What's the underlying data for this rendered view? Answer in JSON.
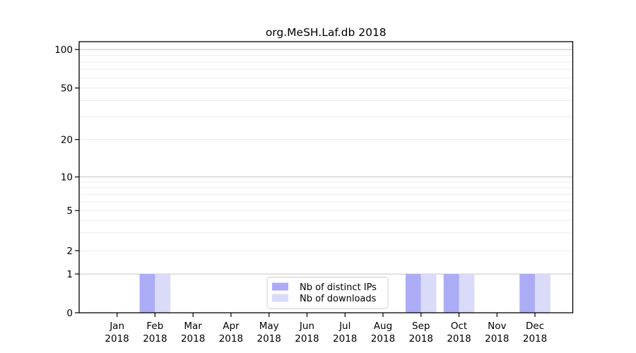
{
  "chart_data": {
    "type": "bar",
    "title": "org.MeSH.Laf.db 2018",
    "categories": [
      "Jan",
      "Feb",
      "Mar",
      "Apr",
      "May",
      "Jun",
      "Jul",
      "Aug",
      "Sep",
      "Oct",
      "Nov",
      "Dec"
    ],
    "x_tick_year": "2018",
    "series": [
      {
        "name": "Nb of distinct IPs",
        "color": "#abacf5",
        "values": [
          0,
          1,
          0,
          0,
          0,
          0,
          0,
          0,
          1,
          1,
          0,
          1
        ]
      },
      {
        "name": "Nb of downloads",
        "color": "#dadaf9",
        "values": [
          0,
          1,
          0,
          0,
          0,
          0,
          0,
          0,
          1,
          1,
          0,
          1
        ]
      }
    ],
    "xlabel": "",
    "ylabel": "",
    "y_ticks": [
      0,
      1,
      2,
      5,
      10,
      20,
      50,
      100
    ],
    "y_major_gridlines": [
      1,
      10,
      100
    ],
    "y_minor_gridlines": [
      2,
      5,
      20,
      50,
      3,
      4,
      6,
      7,
      8,
      9,
      30,
      40,
      60,
      70,
      80,
      90
    ],
    "ylim": [
      0,
      100
    ],
    "grid": "horizontal",
    "legend_position": "inside-bottom-center",
    "y_scale_anchors": {
      "0": 0.0,
      "1": 0.143,
      "2": 0.229,
      "5": 0.377,
      "10": 0.501,
      "20": 0.639,
      "50": 0.829,
      "100": 0.971
    }
  },
  "colors": {
    "background": "#ffffff",
    "axis": "#000000",
    "major_grid": "#c3c3c3",
    "minor_grid": "#ececec",
    "legend_border": "#cccccc",
    "legend_background": "#ffffff"
  }
}
